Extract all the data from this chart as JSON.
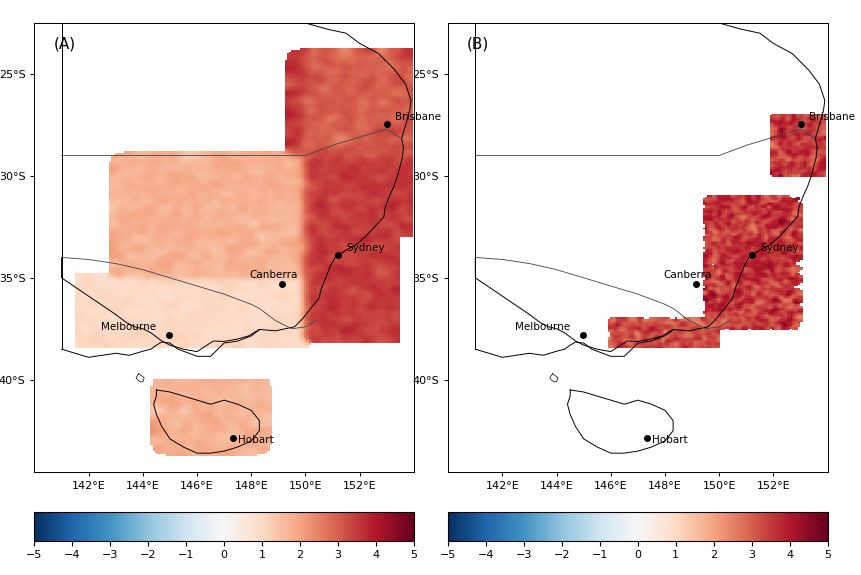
{
  "title_A": "(A)",
  "title_B": "(B)",
  "cities": [
    {
      "name": "Brisbane",
      "lon": 153.025,
      "lat": -27.47
    },
    {
      "name": "Sydney",
      "lon": 151.209,
      "lat": -33.87
    },
    {
      "name": "Canberra",
      "lon": 149.13,
      "lat": -35.28
    },
    {
      "name": "Melbourne",
      "lon": 144.96,
      "lat": -37.81
    },
    {
      "name": "Hobart",
      "lon": 147.33,
      "lat": -42.88
    }
  ],
  "lon_min": 140.0,
  "lon_max": 154.0,
  "lat_min": -44.5,
  "lat_max": -22.5,
  "xticks": [
    142,
    144,
    146,
    148,
    150,
    152
  ],
  "yticks": [
    -25,
    -30,
    -35,
    -40
  ],
  "xlabels": [
    "142°E",
    "144°E",
    "146°E",
    "148°E",
    "150°E",
    "152°E"
  ],
  "ylabels": [
    "25°S",
    "30°S",
    "35°S",
    "40°S"
  ],
  "cbar_vmin": -5,
  "cbar_vmax": 5,
  "cbar_ticks": [
    -5,
    -4,
    -3,
    -2,
    -1,
    0,
    1,
    2,
    3,
    4,
    5
  ],
  "background_color": "#ffffff",
  "border_line_color": "#000000",
  "state_border_color": "#555555"
}
